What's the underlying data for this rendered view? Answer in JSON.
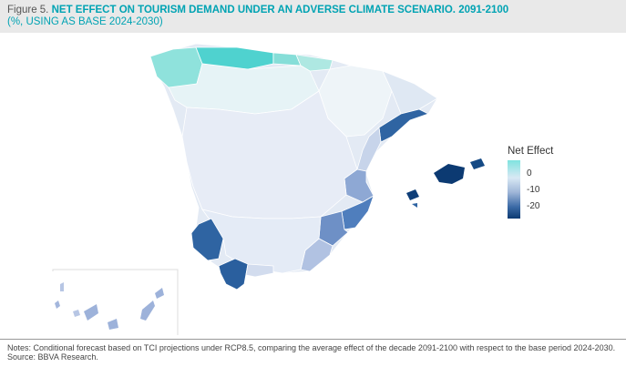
{
  "header": {
    "figure_label": "Figure 5.",
    "title": "NET EFFECT ON TOURISM DEMAND UNDER AN ADVERSE CLIMATE SCENARIO. 2091-2100",
    "subtitle": "(%, USING AS BASE 2024-2030)"
  },
  "legend": {
    "title": "Net Effect",
    "ticks": [
      "0",
      "-10",
      "-20"
    ],
    "colors": {
      "high": "#5ed6d2",
      "mid": "#b8c8e4",
      "low": "#0c3a72"
    }
  },
  "notes": {
    "line1": "Notes: Conditional forecast based on TCI projections under RCP8.5, comparing the average effect of the decade 2091-2100 with respect to the base period 2024-2030.",
    "line2": "Source: BBVA Research."
  }
}
